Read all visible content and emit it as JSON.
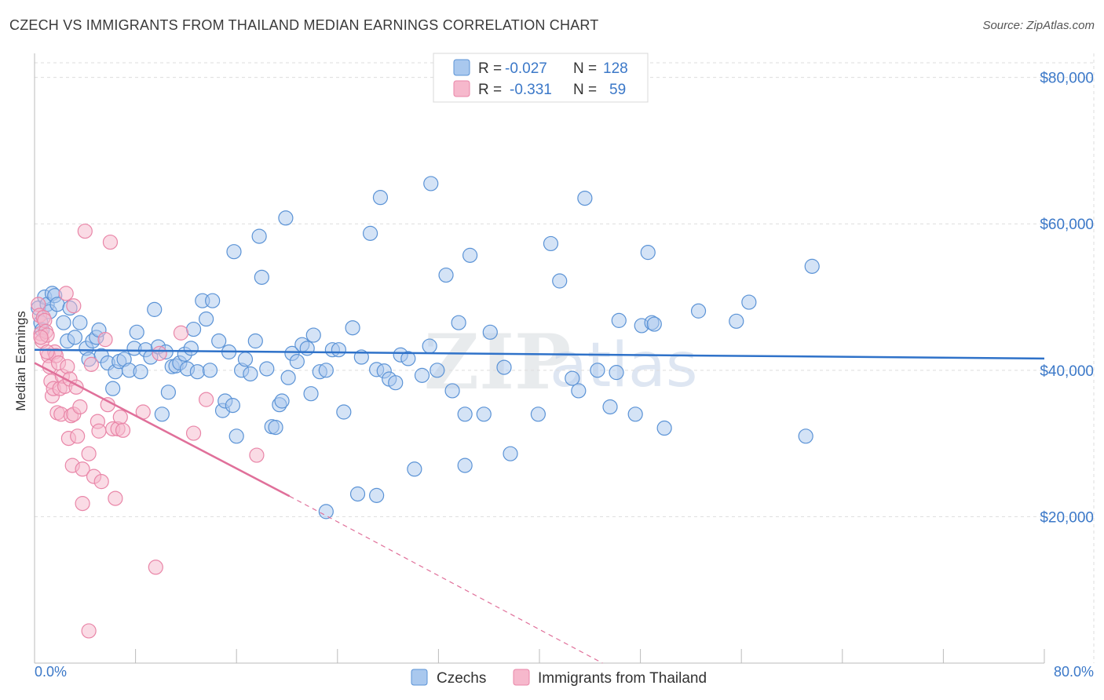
{
  "header": {
    "title": "CZECH VS IMMIGRANTS FROM THAILAND MEDIAN EARNINGS CORRELATION CHART",
    "source": "Source: ZipAtlas.com"
  },
  "watermark": {
    "zip": "ZIP",
    "atlas": "atlas"
  },
  "colors": {
    "blue_fill": "#a9c8ee",
    "blue_stroke": "#5b93d6",
    "blue_line": "#2f72c9",
    "pink_fill": "#f6b8cc",
    "pink_stroke": "#e986a8",
    "pink_line": "#e0709a",
    "axis_label": "#3b78c8",
    "grid": "#dddddd"
  },
  "legend": {
    "rows": [
      {
        "r_label": "R =",
        "r_value": "-0.027",
        "n_label": "N =",
        "n_value": "128"
      },
      {
        "r_label": "R =",
        "r_value": "-0.331",
        "n_label": "N =",
        "n_value": "59"
      }
    ]
  },
  "bottom_legend": {
    "items": [
      {
        "label": "Czechs"
      },
      {
        "label": "Immigrants from Thailand"
      }
    ]
  },
  "chart_data": {
    "type": "scatter",
    "title": "CZECH VS IMMIGRANTS FROM THAILAND MEDIAN EARNINGS CORRELATION CHART",
    "xlabel": "",
    "ylabel": "Median Earnings",
    "xlim": [
      0,
      80
    ],
    "ylim": [
      0,
      82000
    ],
    "x_tick_labels": [
      "0.0%",
      "80.0%"
    ],
    "y_ticks": [
      20000,
      40000,
      60000,
      80000
    ],
    "y_tick_labels": [
      "$20,000",
      "$40,000",
      "$60,000",
      "$80,000"
    ],
    "series": [
      {
        "name": "Czechs",
        "r": -0.027,
        "n": 128,
        "trend": {
          "x": [
            0,
            80
          ],
          "y": [
            42800,
            41600
          ]
        },
        "points": [
          [
            0.3,
            48500
          ],
          [
            0.5,
            46500
          ],
          [
            0.6,
            45500
          ],
          [
            0.8,
            50000
          ],
          [
            1.0,
            49000
          ],
          [
            1.2,
            48000
          ],
          [
            1.4,
            50500
          ],
          [
            1.6,
            50200
          ],
          [
            1.8,
            49000
          ],
          [
            2.3,
            46500
          ],
          [
            2.6,
            44000
          ],
          [
            2.8,
            48500
          ],
          [
            3.2,
            44500
          ],
          [
            3.6,
            46500
          ],
          [
            4.1,
            43000
          ],
          [
            4.3,
            41500
          ],
          [
            4.6,
            44000
          ],
          [
            4.9,
            44500
          ],
          [
            5.1,
            45500
          ],
          [
            5.3,
            42000
          ],
          [
            5.8,
            41000
          ],
          [
            6.2,
            37500
          ],
          [
            6.4,
            39800
          ],
          [
            6.7,
            41200
          ],
          [
            7.1,
            41500
          ],
          [
            7.5,
            40000
          ],
          [
            7.9,
            43000
          ],
          [
            8.1,
            45200
          ],
          [
            8.4,
            39800
          ],
          [
            8.8,
            42800
          ],
          [
            9.2,
            41800
          ],
          [
            9.5,
            48300
          ],
          [
            9.8,
            43200
          ],
          [
            10.1,
            34000
          ],
          [
            10.4,
            42500
          ],
          [
            10.6,
            37000
          ],
          [
            10.9,
            40500
          ],
          [
            11.2,
            40600
          ],
          [
            11.5,
            41000
          ],
          [
            11.9,
            42200
          ],
          [
            12.1,
            40200
          ],
          [
            12.4,
            43000
          ],
          [
            12.6,
            45600
          ],
          [
            12.9,
            39800
          ],
          [
            13.3,
            49500
          ],
          [
            13.6,
            47000
          ],
          [
            13.9,
            40000
          ],
          [
            14.1,
            49500
          ],
          [
            14.6,
            44000
          ],
          [
            14.9,
            34500
          ],
          [
            15.1,
            35800
          ],
          [
            15.4,
            42500
          ],
          [
            15.7,
            35200
          ],
          [
            15.8,
            56200
          ],
          [
            16.0,
            31000
          ],
          [
            16.4,
            40000
          ],
          [
            16.7,
            41500
          ],
          [
            17.1,
            39500
          ],
          [
            17.5,
            44000
          ],
          [
            17.8,
            58300
          ],
          [
            18.0,
            52700
          ],
          [
            18.4,
            40200
          ],
          [
            18.8,
            32300
          ],
          [
            19.1,
            32200
          ],
          [
            19.4,
            35300
          ],
          [
            19.6,
            35800
          ],
          [
            19.9,
            60800
          ],
          [
            20.1,
            39000
          ],
          [
            20.4,
            42300
          ],
          [
            20.8,
            41200
          ],
          [
            21.2,
            43500
          ],
          [
            21.6,
            43000
          ],
          [
            21.9,
            36800
          ],
          [
            22.1,
            44800
          ],
          [
            22.6,
            39800
          ],
          [
            23.1,
            40000
          ],
          [
            23.6,
            42800
          ],
          [
            24.1,
            42800
          ],
          [
            24.5,
            34300
          ],
          [
            25.2,
            45800
          ],
          [
            25.9,
            41800
          ],
          [
            27.1,
            40100
          ],
          [
            27.4,
            63600
          ],
          [
            27.7,
            39900
          ],
          [
            28.1,
            38800
          ],
          [
            28.6,
            38300
          ],
          [
            29.0,
            42100
          ],
          [
            29.6,
            41600
          ],
          [
            30.1,
            26500
          ],
          [
            30.7,
            39300
          ],
          [
            31.3,
            43300
          ],
          [
            31.4,
            65500
          ],
          [
            31.9,
            40000
          ],
          [
            32.6,
            53000
          ],
          [
            33.1,
            37200
          ],
          [
            33.6,
            46500
          ],
          [
            34.1,
            34000
          ],
          [
            34.5,
            55700
          ],
          [
            35.6,
            34000
          ],
          [
            36.1,
            45200
          ],
          [
            37.2,
            40400
          ],
          [
            37.7,
            28600
          ],
          [
            39.9,
            34000
          ],
          [
            40.9,
            57300
          ],
          [
            41.6,
            52200
          ],
          [
            42.6,
            38900
          ],
          [
            43.1,
            37200
          ],
          [
            43.6,
            63500
          ],
          [
            44.6,
            40000
          ],
          [
            45.6,
            35000
          ],
          [
            46.1,
            39700
          ],
          [
            46.3,
            46800
          ],
          [
            47.6,
            34000
          ],
          [
            48.1,
            46100
          ],
          [
            48.6,
            56100
          ],
          [
            48.9,
            46500
          ],
          [
            49.1,
            46300
          ],
          [
            49.9,
            32100
          ],
          [
            52.6,
            48100
          ],
          [
            55.6,
            46700
          ],
          [
            56.6,
            49300
          ],
          [
            61.1,
            31000
          ],
          [
            61.6,
            54200
          ],
          [
            25.6,
            23100
          ],
          [
            27.1,
            22900
          ],
          [
            23.1,
            20700
          ],
          [
            34.1,
            27000
          ],
          [
            26.6,
            58700
          ]
        ]
      },
      {
        "name": "Immigrants from Thailand",
        "r": -0.331,
        "n": 59,
        "trend": {
          "x": [
            0,
            20.2
          ],
          "y": [
            41000,
            22800
          ],
          "dash_x": [
            20.2,
            45
          ],
          "dash_y": [
            22800,
            0
          ]
        },
        "points": [
          [
            0.3,
            49000
          ],
          [
            0.4,
            47500
          ],
          [
            0.5,
            45000
          ],
          [
            0.6,
            44000
          ],
          [
            0.7,
            47200
          ],
          [
            0.8,
            46800
          ],
          [
            0.9,
            45300
          ],
          [
            1.0,
            44800
          ],
          [
            1.1,
            42000
          ],
          [
            1.2,
            40500
          ],
          [
            1.3,
            38500
          ],
          [
            1.4,
            36500
          ],
          [
            1.5,
            37500
          ],
          [
            1.6,
            42500
          ],
          [
            1.7,
            42000
          ],
          [
            1.8,
            34200
          ],
          [
            1.9,
            41000
          ],
          [
            2.0,
            37500
          ],
          [
            2.1,
            34000
          ],
          [
            2.2,
            39200
          ],
          [
            2.4,
            37800
          ],
          [
            2.5,
            50500
          ],
          [
            2.6,
            40500
          ],
          [
            2.7,
            30700
          ],
          [
            2.8,
            38800
          ],
          [
            2.9,
            33800
          ],
          [
            3.0,
            27000
          ],
          [
            3.1,
            34000
          ],
          [
            3.3,
            37700
          ],
          [
            3.4,
            31000
          ],
          [
            3.6,
            35000
          ],
          [
            3.8,
            26500
          ],
          [
            4.0,
            59000
          ],
          [
            4.3,
            28600
          ],
          [
            4.5,
            40800
          ],
          [
            4.7,
            25500
          ],
          [
            5.0,
            33000
          ],
          [
            5.1,
            31700
          ],
          [
            5.3,
            24800
          ],
          [
            5.6,
            44200
          ],
          [
            5.8,
            35300
          ],
          [
            6.0,
            57500
          ],
          [
            6.2,
            32000
          ],
          [
            6.4,
            22500
          ],
          [
            6.6,
            32000
          ],
          [
            6.8,
            33600
          ],
          [
            7.0,
            31800
          ],
          [
            8.6,
            34300
          ],
          [
            9.6,
            13100
          ],
          [
            9.9,
            42300
          ],
          [
            11.6,
            45100
          ],
          [
            12.6,
            31400
          ],
          [
            13.6,
            36000
          ],
          [
            17.6,
            28400
          ],
          [
            4.3,
            4400
          ],
          [
            3.8,
            21800
          ],
          [
            3.1,
            48800
          ],
          [
            0.5,
            44500
          ],
          [
            1.0,
            42500
          ]
        ]
      }
    ]
  }
}
